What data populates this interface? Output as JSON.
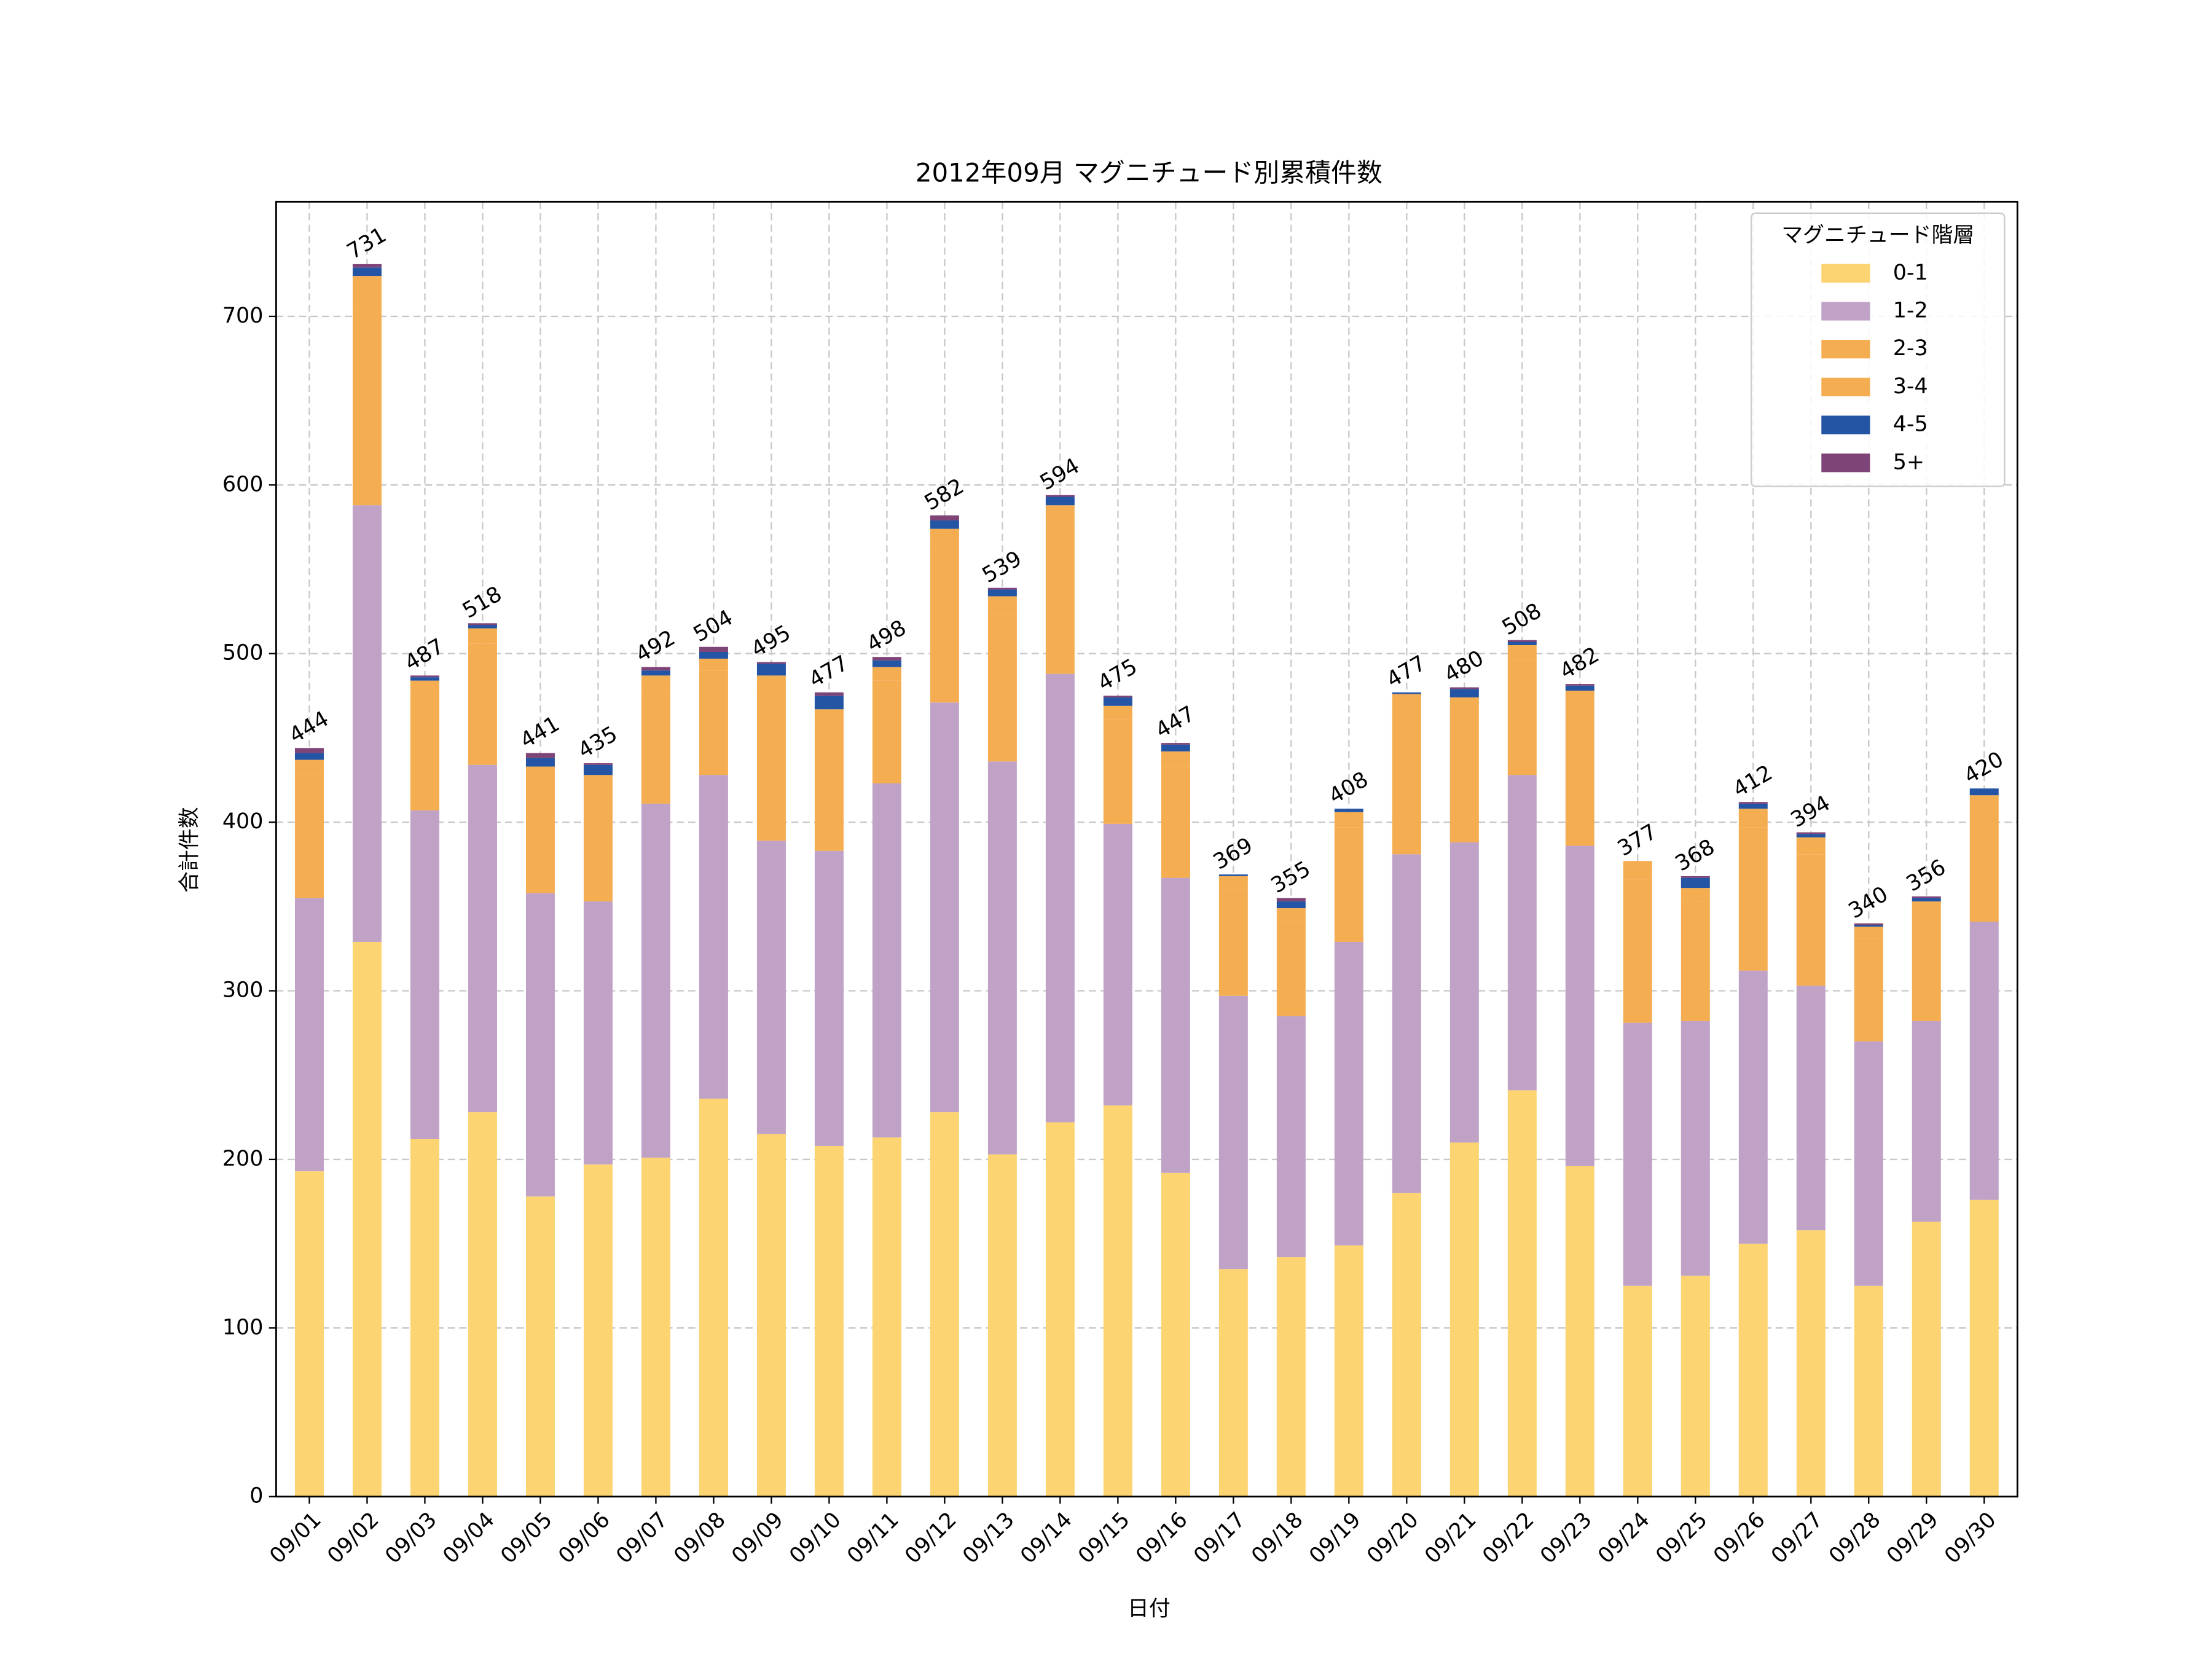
{
  "chart_data": {
    "type": "stacked_bar",
    "title": "2012年09月 マグニチュード別累積件数",
    "x_label": "日付",
    "y_label": "合計件数",
    "categories": [
      "09/01",
      "09/02",
      "09/03",
      "09/04",
      "09/05",
      "09/06",
      "09/07",
      "09/08",
      "09/09",
      "09/10",
      "09/11",
      "09/12",
      "09/13",
      "09/14",
      "09/15",
      "09/16",
      "09/17",
      "09/18",
      "09/19",
      "09/20",
      "09/21",
      "09/22",
      "09/23",
      "09/24",
      "09/25",
      "09/26",
      "09/27",
      "09/28",
      "09/29",
      "09/30"
    ],
    "series": [
      {
        "name": "0-1",
        "color": "#fcd471",
        "values": [
          193,
          329,
          212,
          228,
          178,
          197,
          201,
          236,
          215,
          208,
          213,
          228,
          203,
          222,
          232,
          192,
          135,
          142,
          149,
          180,
          210,
          241,
          196,
          125,
          131,
          150,
          158,
          125,
          163,
          176
        ]
      },
      {
        "name": "1-2",
        "color": "#c0a2c7",
        "values": [
          162,
          259,
          195,
          206,
          180,
          156,
          210,
          192,
          174,
          175,
          210,
          243,
          233,
          266,
          167,
          175,
          162,
          143,
          180,
          201,
          178,
          187,
          190,
          156,
          151,
          162,
          145,
          145,
          119,
          165
        ]
      },
      {
        "name": "2-3",
        "color": "#f5ad52",
        "values": [
          73,
          118,
          69,
          72,
          67,
          66,
          68,
          62,
          87,
          74,
          61,
          91,
          87,
          87,
          62,
          66,
          64,
          57,
          68,
          85,
          76,
          68,
          82,
          85,
          71,
          85,
          78,
          61,
          63,
          66
        ]
      },
      {
        "name": "3-4",
        "color": "#f5ad52",
        "values": [
          9,
          18,
          8,
          9,
          8,
          9,
          8,
          7,
          11,
          10,
          8,
          12,
          11,
          13,
          8,
          9,
          7,
          7,
          9,
          10,
          10,
          9,
          10,
          11,
          8,
          11,
          10,
          7,
          8,
          9
        ]
      },
      {
        "name": "4-5",
        "color": "#2455a4",
        "values": [
          4,
          5,
          2,
          2,
          5,
          6,
          3,
          4,
          7,
          8,
          4,
          5,
          4,
          5,
          5,
          4,
          1,
          4,
          2,
          1,
          5,
          2,
          3,
          0,
          6,
          3,
          2,
          1,
          2,
          4
        ]
      },
      {
        "name": "5+",
        "color": "#7e4377",
        "values": [
          3,
          2,
          1,
          1,
          3,
          1,
          2,
          3,
          1,
          2,
          2,
          3,
          1,
          1,
          1,
          1,
          0,
          2,
          0,
          0,
          1,
          1,
          1,
          0,
          1,
          1,
          1,
          1,
          1,
          0
        ]
      }
    ],
    "totals": [
      444,
      731,
      487,
      518,
      441,
      435,
      492,
      504,
      495,
      477,
      498,
      582,
      539,
      594,
      475,
      447,
      369,
      355,
      408,
      477,
      480,
      508,
      482,
      377,
      368,
      412,
      394,
      340,
      356,
      420
    ],
    "legend_title": "マグニチュード階層",
    "legend_position": "upper right",
    "ylim": [
      0,
      768
    ],
    "yticks": [
      0,
      100,
      200,
      300,
      400,
      500,
      600,
      700
    ],
    "grid": true
  }
}
